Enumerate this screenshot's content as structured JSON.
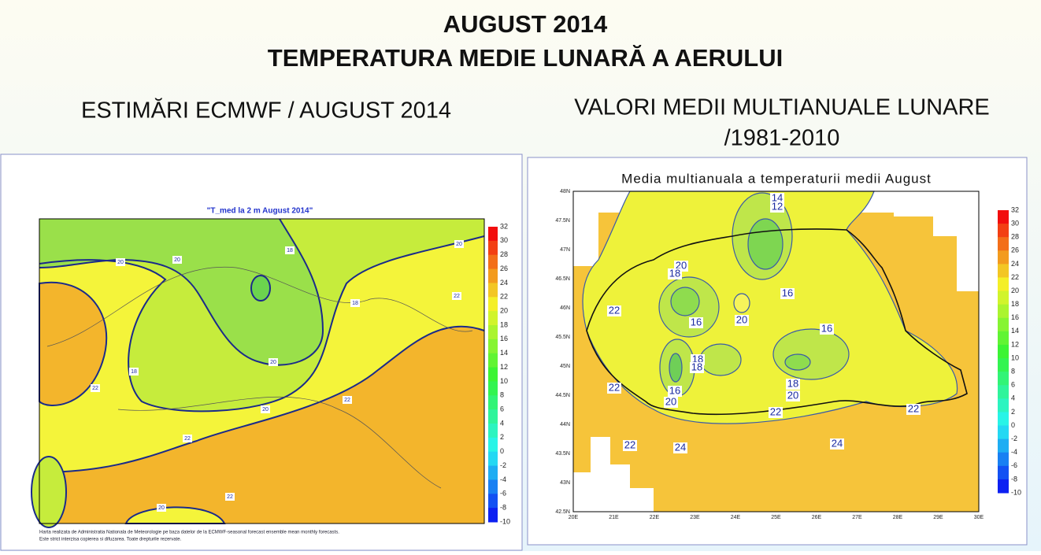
{
  "header": {
    "title_lines": [
      "AUGUST 2014",
      "TEMPERATURA MEDIE LUNARĂ A AERULUI"
    ]
  },
  "left_panel": {
    "heading": "ESTIMĂRI ECMWF / AUGUST 2014",
    "map_title": "\"T_med la 2 m August 2014\"",
    "contour_labels": [
      "20",
      "20",
      "18",
      "18",
      "20",
      "22",
      "20",
      "18",
      "22",
      "20",
      "22",
      "22",
      "22",
      "20"
    ],
    "colorbar_ticks": [
      "32",
      "30",
      "28",
      "26",
      "24",
      "22",
      "20",
      "18",
      "16",
      "14",
      "12",
      "10",
      "8",
      "6",
      "4",
      "2",
      "0",
      "-2",
      "-4",
      "-6",
      "-8",
      "-10"
    ],
    "footnote_lines": [
      "Harta realizata de Administratia Nationala de Meteorologie pe baza datelor de la ECMWF-seasonal forecast ensemble mean monthly forecasts.",
      "Este strict interzisa copierea si difuzarea. Toate drepturile rezervate."
    ]
  },
  "right_panel": {
    "heading_lines": [
      "VALORI MEDII MULTIANUALE LUNARE",
      "/1981-2010"
    ],
    "map_title": "Media multianuala a temperaturii medii August",
    "lat_labels": [
      "48N",
      "47.5N",
      "47N",
      "46.5N",
      "46N",
      "45.5N",
      "45N",
      "44.5N",
      "44N",
      "43.5N",
      "43N",
      "42.5N"
    ],
    "lon_labels": [
      "20E",
      "21E",
      "22E",
      "23E",
      "24E",
      "25E",
      "26E",
      "27E",
      "28E",
      "29E",
      "30E"
    ],
    "contour_labels": [
      "14",
      "12",
      "20",
      "18",
      "22",
      "16",
      "20",
      "16",
      "16",
      "18",
      "18",
      "22",
      "16",
      "20",
      "18",
      "20",
      "22",
      "22",
      "22",
      "24",
      "24"
    ],
    "colorbar_ticks": [
      "32",
      "30",
      "28",
      "26",
      "24",
      "22",
      "20",
      "18",
      "16",
      "14",
      "12",
      "10",
      "8",
      "6",
      "4",
      "2",
      "0",
      "-2",
      "-4",
      "-6",
      "-8",
      "-10"
    ]
  }
}
